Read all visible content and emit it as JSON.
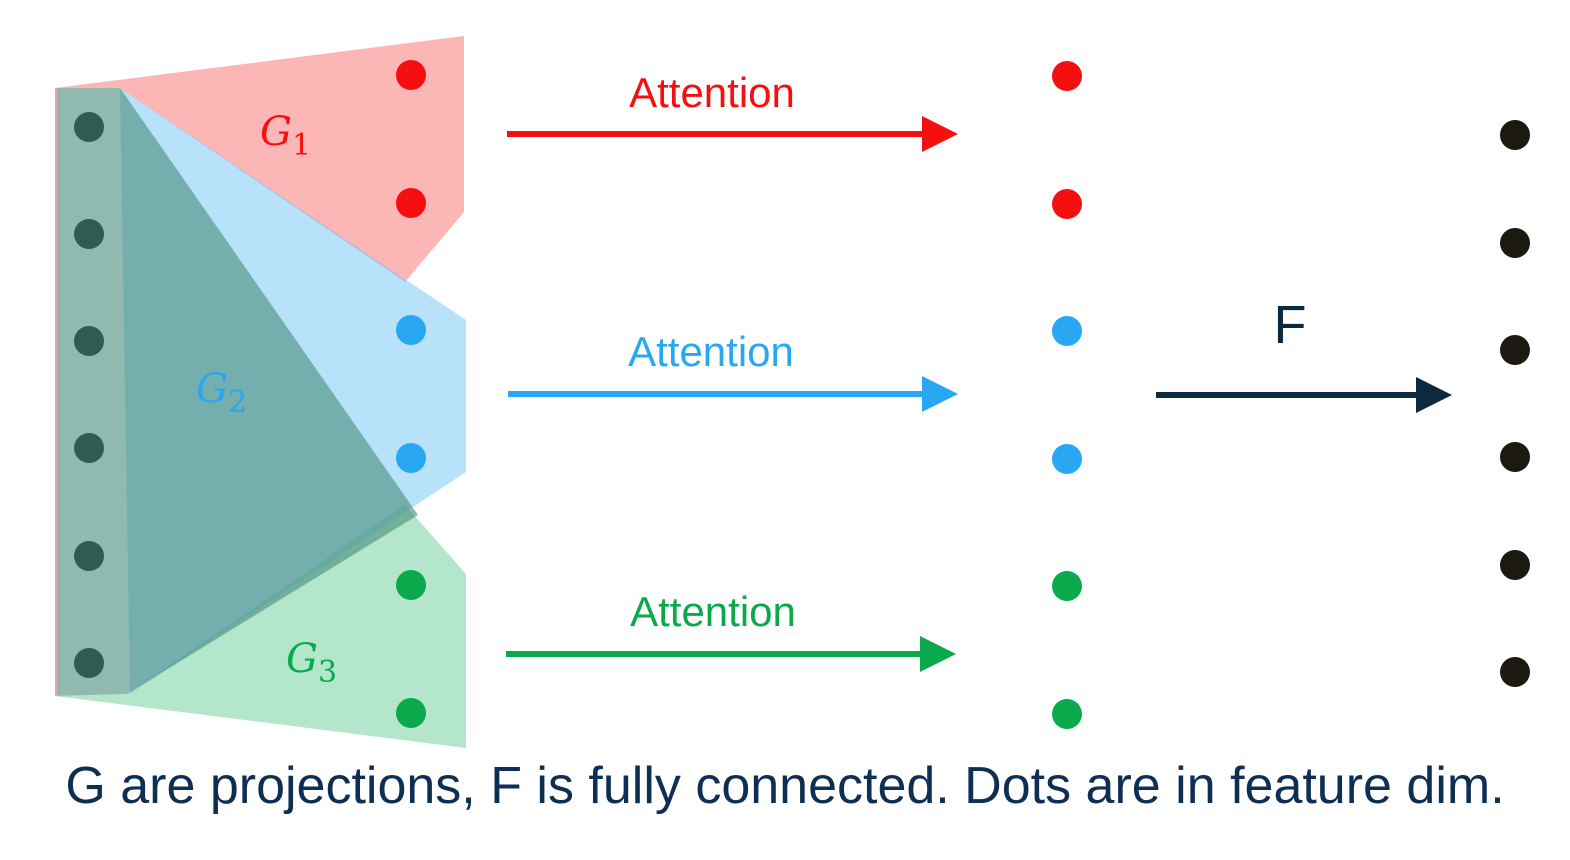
{
  "groups": [
    {
      "id": "g1",
      "letter": "G",
      "subscript": "1",
      "color": "#f50f0f",
      "fill": "#fb8686"
    },
    {
      "id": "g2",
      "letter": "G",
      "subscript": "2",
      "color": "#2aa7f2",
      "fill": "#7ec9f5"
    },
    {
      "id": "g3",
      "letter": "G",
      "subscript": "3",
      "color": "#0aaa4c",
      "fill": "#81d6a8"
    }
  ],
  "attention": [
    {
      "label": "Attention",
      "color": "#f50f0f"
    },
    {
      "label": "Attention",
      "color": "#2aa7f2"
    },
    {
      "label": "Attention",
      "color": "#0aaa4c"
    }
  ],
  "fc": {
    "label": "F",
    "color": "#0c2a3e"
  },
  "colors": {
    "input_dot": "#2f5b50",
    "output_dot": "#1c1a10"
  },
  "caption": "G are projections, F is fully connected. Dots are in feature dim."
}
